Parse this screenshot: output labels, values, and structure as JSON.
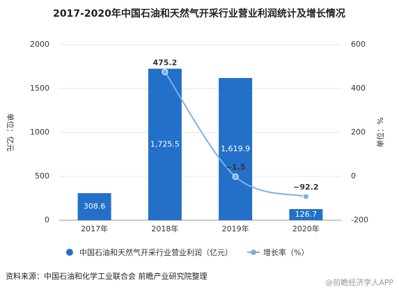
{
  "chart_data": {
    "type": "bar-line",
    "title": "2017-2020年中国石油和天然气开采行业营业利润统计及增长情况",
    "categories": [
      "2017年",
      "2018年",
      "2019年",
      "2020年"
    ],
    "series": [
      {
        "name": "中国石油和天然气开采行业营业利润（亿元）",
        "type": "bar",
        "color": "#2470c8",
        "values": [
          308.6,
          1725.5,
          1619.9,
          126.7
        ],
        "value_labels": [
          "308.6",
          "1,725.5",
          "1,619.9",
          "126.7"
        ]
      },
      {
        "name": "增长率（%）",
        "type": "line",
        "axis": "y2",
        "color": "#7db0e2",
        "values": [
          null,
          475.2,
          -1.5,
          -92.2
        ],
        "value_labels": [
          null,
          "475.2",
          "−1.5",
          "−92.2"
        ]
      }
    ],
    "ylabel": "单位：亿元",
    "y2label": "单位：%",
    "ylim": [
      0,
      2000
    ],
    "yticks": [
      0,
      500,
      1000,
      1500,
      2000
    ],
    "y2lim": [
      -200,
      600
    ],
    "y2ticks": [
      -200,
      0,
      200,
      400,
      600
    ],
    "grid": true,
    "source": "资料来源：中国石油和化学工业联合会 前瞻产业研究院整理",
    "watermark": "@前瞻经济学人APP"
  }
}
